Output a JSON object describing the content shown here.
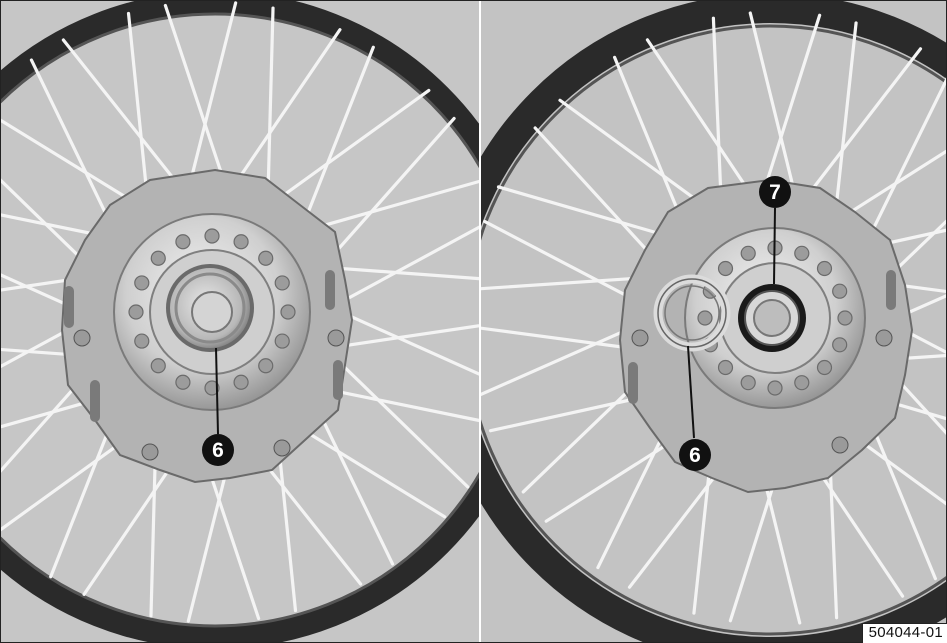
{
  "figure": {
    "reference_code": "504044-01",
    "panels": [
      {
        "id": "left",
        "callouts": [
          "6"
        ]
      },
      {
        "id": "right",
        "callouts": [
          "7",
          "6"
        ]
      }
    ],
    "colors": {
      "background": "#c4c4c4",
      "rim": "#2b2b2b",
      "spoke": "#eeeeee",
      "hub": "#d9d9d9",
      "callout_fill": "#111111",
      "callout_text": "#ffffff"
    }
  }
}
